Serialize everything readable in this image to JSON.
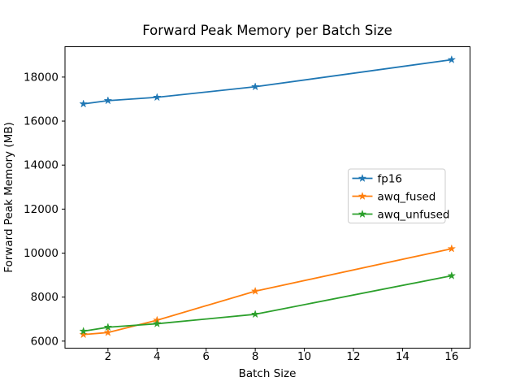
{
  "chart_data": {
    "type": "line",
    "title": "Forward Peak Memory per Batch Size",
    "xlabel": "Batch Size",
    "ylabel": "Forward Peak Memory (MB)",
    "x": [
      1,
      2,
      4,
      8,
      16
    ],
    "series": [
      {
        "name": "fp16",
        "color": "#1f77b4",
        "marker": "star",
        "values": [
          16780,
          16930,
          17080,
          17560,
          18790
        ]
      },
      {
        "name": "awq_fused",
        "color": "#ff7f0e",
        "marker": "star",
        "values": [
          6300,
          6390,
          6950,
          8270,
          10200
        ]
      },
      {
        "name": "awq_unfused",
        "color": "#2ca02c",
        "marker": "star",
        "values": [
          6450,
          6630,
          6790,
          7220,
          8970
        ]
      }
    ],
    "xticks": [
      2,
      4,
      6,
      8,
      10,
      12,
      14,
      16
    ],
    "yticks": [
      6000,
      8000,
      10000,
      12000,
      14000,
      16000,
      18000
    ],
    "xlim": [
      0.25,
      16.75
    ],
    "ylim": [
      5680,
      19380
    ],
    "grid": false,
    "legend_position": "center right",
    "legend_entries": [
      "fp16",
      "awq_fused",
      "awq_unfused"
    ],
    "spine_color": "#000000",
    "legend_border_color": "#cccccc",
    "background_color": "#ffffff"
  }
}
